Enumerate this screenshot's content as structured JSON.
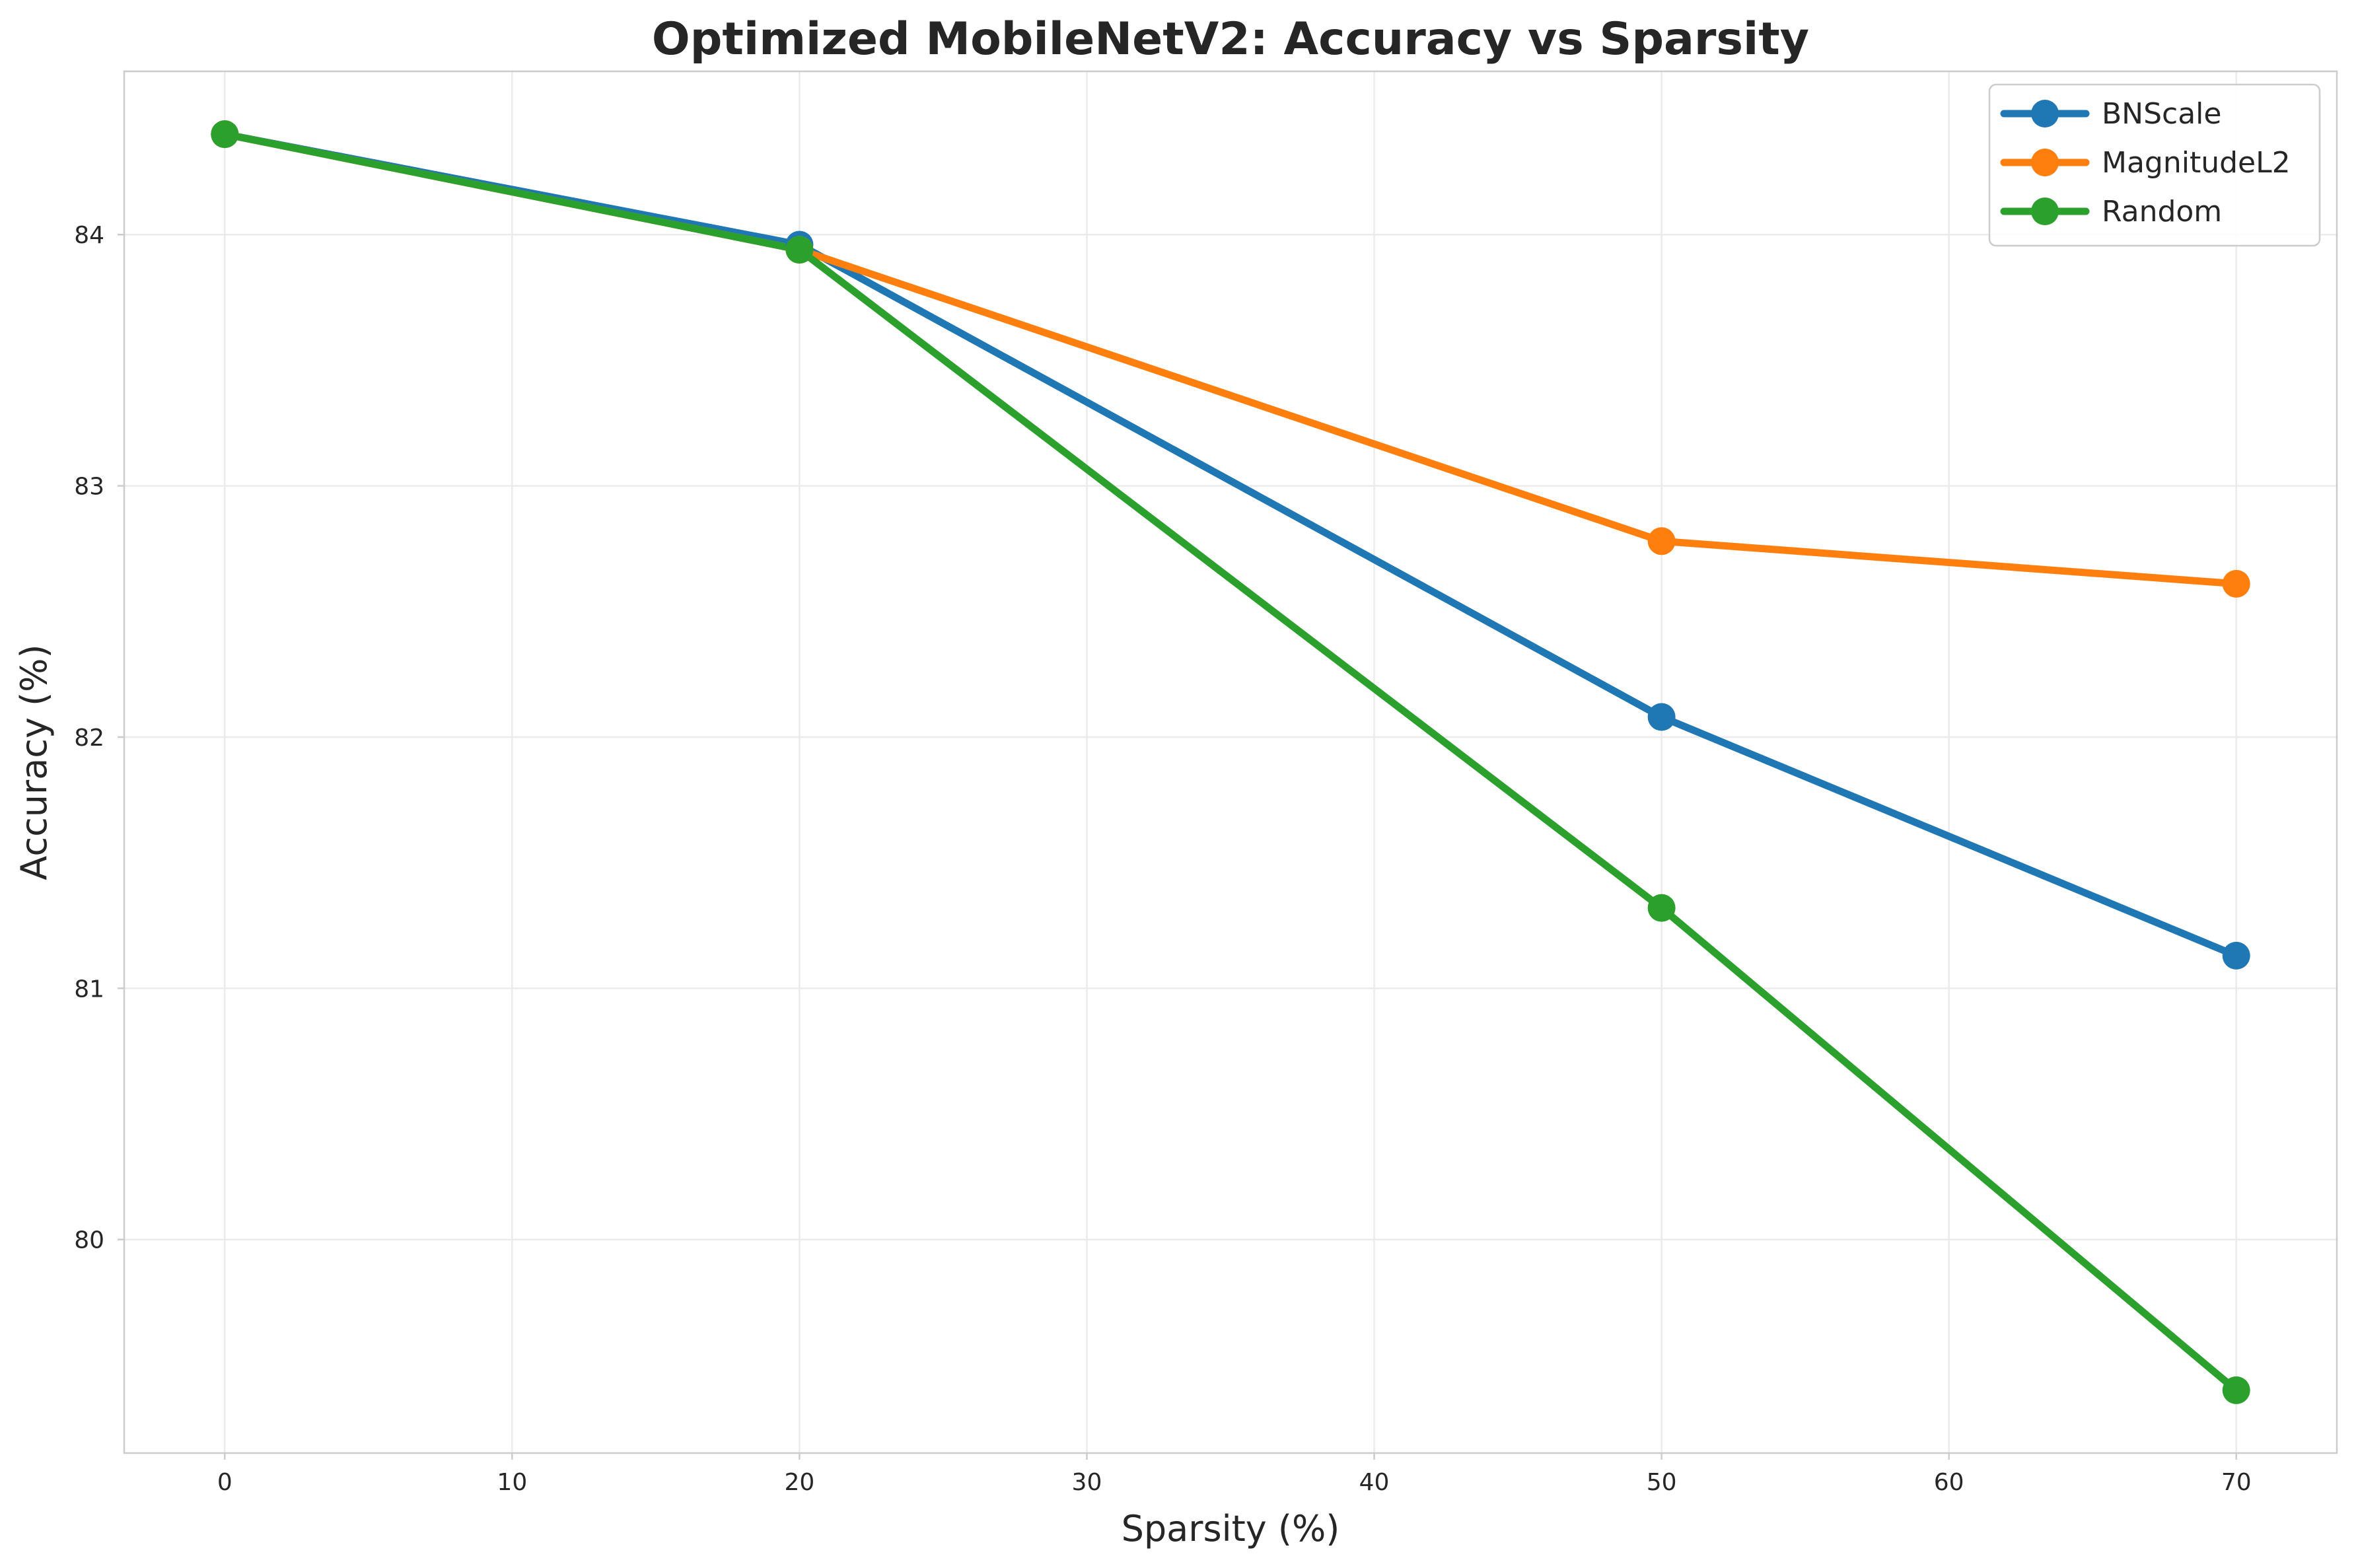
{
  "chart_data": {
    "type": "line",
    "title": "Optimized MobileNetV2: Accuracy vs Sparsity",
    "xlabel": "Sparsity (%)",
    "ylabel": "Accuracy (%)",
    "xlim": [
      -3.5,
      73.5
    ],
    "ylim": [
      79.15,
      84.65
    ],
    "xticks": [
      0,
      10,
      20,
      30,
      40,
      50,
      60,
      70
    ],
    "yticks": [
      80,
      81,
      82,
      83,
      84
    ],
    "grid": true,
    "legend_position": "top-right",
    "x": [
      0,
      20,
      50,
      70
    ],
    "series": [
      {
        "name": "BNScale",
        "color": "#1f77b4",
        "values": [
          84.4,
          83.96,
          82.08,
          81.13
        ]
      },
      {
        "name": "MagnitudeL2",
        "color": "#ff7f0e",
        "values": [
          84.4,
          83.94,
          82.78,
          82.61
        ]
      },
      {
        "name": "Random",
        "color": "#2ca02c",
        "values": [
          84.4,
          83.94,
          81.32,
          79.4
        ]
      }
    ]
  }
}
